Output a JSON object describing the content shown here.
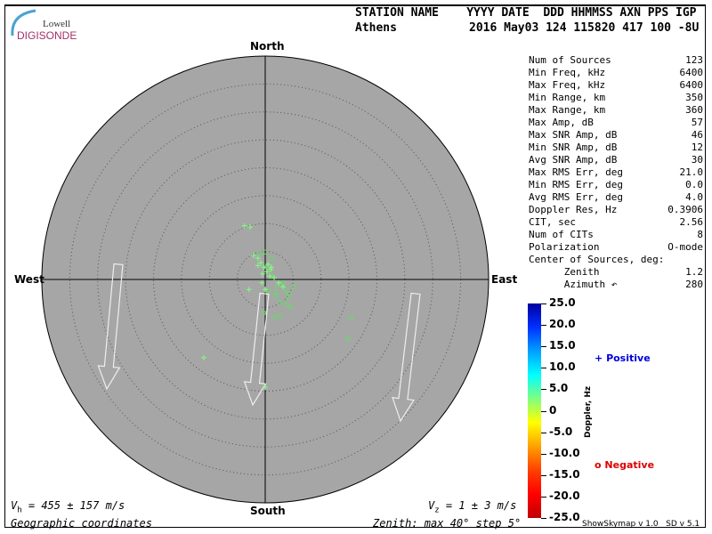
{
  "logo": {
    "line1": "Lowell",
    "line2": "DIGISONDE"
  },
  "header": {
    "labels": "STATION NAME    YYYY DATE  DDD HHMMSS AXN PPS IGP",
    "station": "Athens",
    "values": "2016 May03 124 115820 417 100 -8U"
  },
  "stats": [
    {
      "label": "Num of Sources",
      "value": "123"
    },
    {
      "label": "Min Freq, kHz",
      "value": "6400"
    },
    {
      "label": "Max Freq, kHz",
      "value": "6400"
    },
    {
      "label": "Min Range, km",
      "value": "350"
    },
    {
      "label": "Max Range, km",
      "value": "360"
    },
    {
      "label": "Max Amp, dB",
      "value": "57"
    },
    {
      "label": "Max SNR Amp, dB",
      "value": "46"
    },
    {
      "label": "Min SNR Amp, dB",
      "value": "12"
    },
    {
      "label": "Avg SNR Amp, dB",
      "value": "30"
    },
    {
      "label": "Max RMS Err, deg",
      "value": "21.0"
    },
    {
      "label": "Min RMS Err, deg",
      "value": "0.0"
    },
    {
      "label": "Avg RMS Err, deg",
      "value": "4.0"
    },
    {
      "label": "Doppler Res, Hz",
      "value": "0.3906"
    },
    {
      "label": "CIT, sec",
      "value": "2.56"
    },
    {
      "label": "Num of CITs",
      "value": "8"
    },
    {
      "label": "Polarization",
      "value": "O-mode"
    },
    {
      "label": "Center of Sources, deg:",
      "value": ""
    },
    {
      "label": "      Zenith",
      "value": "1.2"
    },
    {
      "label": "      Azimuth ↶",
      "value": "280"
    }
  ],
  "directions": {
    "north": "North",
    "south": "South",
    "east": "East",
    "west": "West"
  },
  "footer": {
    "vh_prefix": "V",
    "vh_sub": "h",
    "vh_value": " = 455 ± 157 m/s",
    "vz_prefix": "V",
    "vz_sub": "z",
    "vz_value": " = 1 ± 3 m/s",
    "coords": "Geographic coordinates",
    "zenith": "Zenith: max 40°  step 5°",
    "version": "ShowSkymap v 1.0   SD v 5.1"
  },
  "colorbar": {
    "title": "Doppler, Hz",
    "ticks": [
      "25.0",
      "20.0",
      "15.0",
      "10.0",
      "5.0",
      "0",
      "-5.0",
      "-10.0",
      "-15.0",
      "-20.0",
      "-25.0"
    ],
    "positive_symbol": "+",
    "positive_label": "Positive",
    "positive_color": "#0000dd",
    "negative_symbol": "o",
    "negative_label": "Negative",
    "negative_color": "#dd0000"
  },
  "chart_data": {
    "type": "scatter",
    "projection": "polar skymap, zenith angle radial",
    "zenith_max_deg": 40,
    "zenith_step_deg": 5,
    "background": "#a6a6a6",
    "point_units": "degrees east / north of zenith",
    "positive": [
      [
        -3.7,
        9.6
      ],
      [
        -2.7,
        9.4
      ],
      [
        -2.9,
        -1.8
      ],
      [
        -11,
        -14
      ],
      [
        0,
        -19.3
      ],
      [
        -2.1,
        4.3
      ],
      [
        -1.3,
        3.8
      ],
      [
        -0.8,
        3.0
      ],
      [
        -0.3,
        2.2
      ],
      [
        0.3,
        1.4
      ],
      [
        0.8,
        0.6
      ],
      [
        -0.5,
        1.0
      ],
      [
        1.6,
        0.3
      ],
      [
        2.4,
        -0.6
      ],
      [
        3.2,
        -1.3
      ],
      [
        -0.6,
        -0.6
      ],
      [
        0,
        -1.8
      ],
      [
        1.1,
        2.2
      ],
      [
        -1.3,
        2.5
      ],
      [
        0.5,
        2.7
      ],
      [
        1.0,
        1.8
      ]
    ],
    "negative": [
      [
        0,
        4.9
      ],
      [
        0.3,
        2.2
      ],
      [
        1.1,
        0.6
      ],
      [
        2.2,
        -1.0
      ],
      [
        3.2,
        -0.6
      ],
      [
        3.5,
        -1.8
      ],
      [
        4.3,
        -2.5
      ],
      [
        5.1,
        -1.3
      ],
      [
        2.7,
        -4.1
      ],
      [
        3.8,
        -4.5
      ],
      [
        4.5,
        -5.0
      ],
      [
        1.9,
        -3.0
      ],
      [
        -0.3,
        -6.0
      ],
      [
        1.6,
        -6.7
      ],
      [
        2.7,
        -6.5
      ],
      [
        15.4,
        -6.8
      ],
      [
        14.8,
        -10.7
      ],
      [
        1.1,
        3.8
      ],
      [
        -1.0,
        4.6
      ],
      [
        0.6,
        -2.0
      ],
      [
        2.0,
        -2.2
      ],
      [
        4.0,
        -3.2
      ]
    ]
  }
}
